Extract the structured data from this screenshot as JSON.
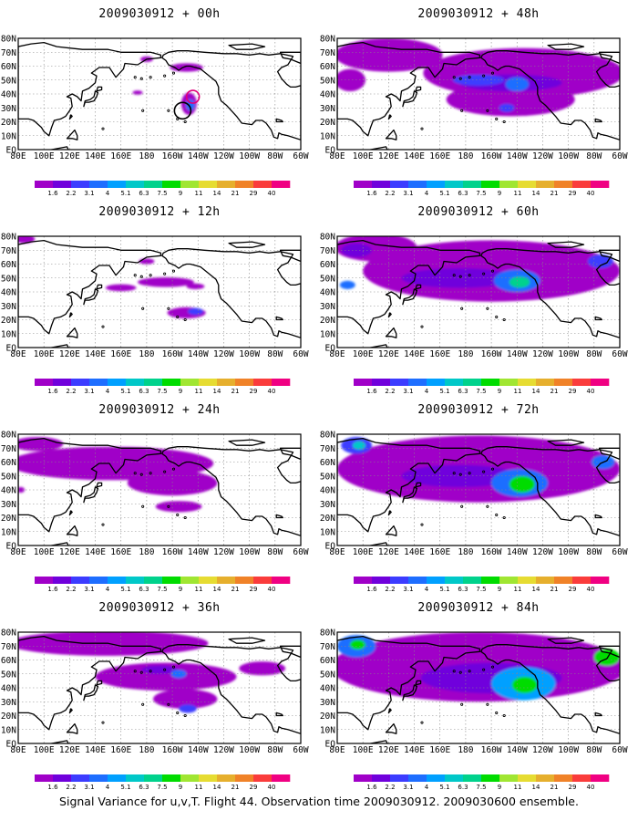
{
  "chart_data": {
    "type": "heatmap",
    "footer": "Signal Variance for u,v,T. Flight 44. Observation time 2009030912. 2009030600 ensemble.",
    "lat_ticks": [
      "80N",
      "70N",
      "60N",
      "50N",
      "40N",
      "30N",
      "20N",
      "10N",
      "EQ"
    ],
    "lon_ticks": [
      "80E",
      "100E",
      "120E",
      "140E",
      "160E",
      "180",
      "160W",
      "140W",
      "120W",
      "100W",
      "80W",
      "60W"
    ],
    "xlim": [
      80,
      300
    ],
    "ylim": [
      0,
      80
    ],
    "grid": true,
    "colorbar": {
      "levels": [
        "1.6",
        "2.2",
        "3.1",
        "4",
        "5.1",
        "6.3",
        "7.5",
        "9",
        "11",
        "14",
        "21",
        "29",
        "40"
      ],
      "colors": [
        "#a000c8",
        "#7000dc",
        "#3c3cff",
        "#1e6eff",
        "#00a0ff",
        "#00c8c8",
        "#00d28c",
        "#00dc00",
        "#a0e632",
        "#e6dc32",
        "#e6af2d",
        "#f08228",
        "#fa3c3c",
        "#f00082"
      ]
    },
    "markers": [
      {
        "type": "circle",
        "color": "#e0007a",
        "lon": 216,
        "lat": 38,
        "r": 7
      },
      {
        "type": "circle",
        "color": "#000000",
        "lon": 208,
        "lat": 28,
        "r": 9
      }
    ],
    "panels": [
      {
        "title": "2009030912 + 00h",
        "column": 0,
        "row": 0,
        "blobs": [
          {
            "lon": 211,
            "lat": 59,
            "rx": 13,
            "ry": 3,
            "level": 0
          },
          {
            "lon": 180,
            "lat": 65,
            "rx": 5,
            "ry": 2,
            "level": 0
          },
          {
            "lon": 173,
            "lat": 41,
            "rx": 4,
            "ry": 1.5,
            "level": 0
          },
          {
            "lon": 213,
            "lat": 33,
            "rx": 6,
            "ry": 8,
            "level": 0
          },
          {
            "lon": 214,
            "lat": 32,
            "rx": 3.5,
            "ry": 4,
            "level": 3
          }
        ]
      },
      {
        "title": "2009030912 + 12h",
        "column": 0,
        "row": 1,
        "blobs": [
          {
            "lon": 85,
            "lat": 78,
            "rx": 8,
            "ry": 3,
            "level": 0
          },
          {
            "lon": 180,
            "lat": 62,
            "rx": 6,
            "ry": 2,
            "level": 0
          },
          {
            "lon": 195,
            "lat": 47,
            "rx": 22,
            "ry": 3.5,
            "level": 0
          },
          {
            "lon": 160,
            "lat": 43,
            "rx": 12,
            "ry": 2.5,
            "level": 0
          },
          {
            "lon": 218,
            "lat": 44,
            "rx": 7,
            "ry": 2,
            "level": 0
          },
          {
            "lon": 211,
            "lat": 25,
            "rx": 15,
            "ry": 4,
            "level": 0
          },
          {
            "lon": 218,
            "lat": 26,
            "rx": 6,
            "ry": 2.5,
            "level": 2
          }
        ]
      },
      {
        "title": "2009030912 + 24h",
        "column": 0,
        "row": 2,
        "blobs": [
          {
            "lon": 152,
            "lat": 59,
            "rx": 80,
            "ry": 12,
            "level": 0
          },
          {
            "lon": 95,
            "lat": 73,
            "rx": 20,
            "ry": 5,
            "level": 0
          },
          {
            "lon": 200,
            "lat": 45,
            "rx": 35,
            "ry": 9,
            "level": 0
          },
          {
            "lon": 205,
            "lat": 28,
            "rx": 18,
            "ry": 4,
            "level": 0
          },
          {
            "lon": 82,
            "lat": 40,
            "rx": 3,
            "ry": 2,
            "level": 0
          }
        ]
      },
      {
        "title": "2009030912 + 36h",
        "column": 0,
        "row": 3,
        "blobs": [
          {
            "lon": 150,
            "lat": 72,
            "rx": 78,
            "ry": 9,
            "level": 0
          },
          {
            "lon": 195,
            "lat": 48,
            "rx": 55,
            "ry": 10,
            "level": 0
          },
          {
            "lon": 270,
            "lat": 54,
            "rx": 18,
            "ry": 5,
            "level": 0
          },
          {
            "lon": 210,
            "lat": 32,
            "rx": 25,
            "ry": 7,
            "level": 0
          },
          {
            "lon": 190,
            "lat": 53,
            "rx": 14,
            "ry": 3,
            "level": 1
          },
          {
            "lon": 205,
            "lat": 50,
            "rx": 6,
            "ry": 3,
            "level": 3
          },
          {
            "lon": 212,
            "lat": 25,
            "rx": 7,
            "ry": 3,
            "level": 2
          }
        ]
      },
      {
        "title": "2009030912 + 48h",
        "column": 1,
        "row": 0,
        "blobs": [
          {
            "lon": 120,
            "lat": 68,
            "rx": 42,
            "ry": 12,
            "level": 0
          },
          {
            "lon": 225,
            "lat": 55,
            "rx": 78,
            "ry": 18,
            "level": 0
          },
          {
            "lon": 215,
            "lat": 36,
            "rx": 50,
            "ry": 12,
            "level": 0
          },
          {
            "lon": 90,
            "lat": 50,
            "rx": 12,
            "ry": 8,
            "level": 0
          },
          {
            "lon": 215,
            "lat": 48,
            "rx": 40,
            "ry": 6,
            "level": 1
          },
          {
            "lon": 190,
            "lat": 50,
            "rx": 20,
            "ry": 4,
            "level": 2
          },
          {
            "lon": 220,
            "lat": 47,
            "rx": 9,
            "ry": 5,
            "level": 3
          },
          {
            "lon": 212,
            "lat": 30,
            "rx": 6,
            "ry": 3,
            "level": 2
          }
        ]
      },
      {
        "title": "2009030912 + 60h",
        "column": 1,
        "row": 1,
        "blobs": [
          {
            "lon": 110,
            "lat": 72,
            "rx": 32,
            "ry": 10,
            "level": 0
          },
          {
            "lon": 200,
            "lat": 55,
            "rx": 100,
            "ry": 22,
            "level": 0
          },
          {
            "lon": 95,
            "lat": 70,
            "rx": 12,
            "ry": 5,
            "level": 1
          },
          {
            "lon": 175,
            "lat": 50,
            "rx": 45,
            "ry": 7,
            "level": 1
          },
          {
            "lon": 220,
            "lat": 48,
            "rx": 18,
            "ry": 8,
            "level": 3
          },
          {
            "lon": 222,
            "lat": 47,
            "rx": 8,
            "ry": 4,
            "level": 6
          },
          {
            "lon": 285,
            "lat": 62,
            "rx": 10,
            "ry": 5,
            "level": 2
          },
          {
            "lon": 88,
            "lat": 45,
            "rx": 6,
            "ry": 3,
            "level": 3
          }
        ]
      },
      {
        "title": "2009030912 + 72h",
        "column": 1,
        "row": 2,
        "blobs": [
          {
            "lon": 190,
            "lat": 55,
            "rx": 110,
            "ry": 24,
            "level": 0
          },
          {
            "lon": 95,
            "lat": 72,
            "rx": 12,
            "ry": 6,
            "level": 2
          },
          {
            "lon": 97,
            "lat": 72,
            "rx": 5,
            "ry": 3,
            "level": 5
          },
          {
            "lon": 175,
            "lat": 50,
            "rx": 45,
            "ry": 8,
            "level": 1
          },
          {
            "lon": 222,
            "lat": 45,
            "rx": 22,
            "ry": 10,
            "level": 3
          },
          {
            "lon": 224,
            "lat": 44,
            "rx": 10,
            "ry": 6,
            "level": 7
          },
          {
            "lon": 287,
            "lat": 60,
            "rx": 9,
            "ry": 5,
            "level": 3
          }
        ]
      },
      {
        "title": "2009030912 + 84h",
        "column": 1,
        "row": 3,
        "blobs": [
          {
            "lon": 190,
            "lat": 55,
            "rx": 115,
            "ry": 25,
            "level": 0
          },
          {
            "lon": 95,
            "lat": 70,
            "rx": 15,
            "ry": 8,
            "level": 3
          },
          {
            "lon": 96,
            "lat": 71,
            "rx": 6,
            "ry": 3.5,
            "level": 7
          },
          {
            "lon": 200,
            "lat": 47,
            "rx": 55,
            "ry": 11,
            "level": 1
          },
          {
            "lon": 225,
            "lat": 43,
            "rx": 25,
            "ry": 12,
            "level": 4
          },
          {
            "lon": 226,
            "lat": 42,
            "rx": 10,
            "ry": 6,
            "level": 7
          },
          {
            "lon": 290,
            "lat": 62,
            "rx": 10,
            "ry": 6,
            "level": 7
          }
        ]
      }
    ]
  }
}
